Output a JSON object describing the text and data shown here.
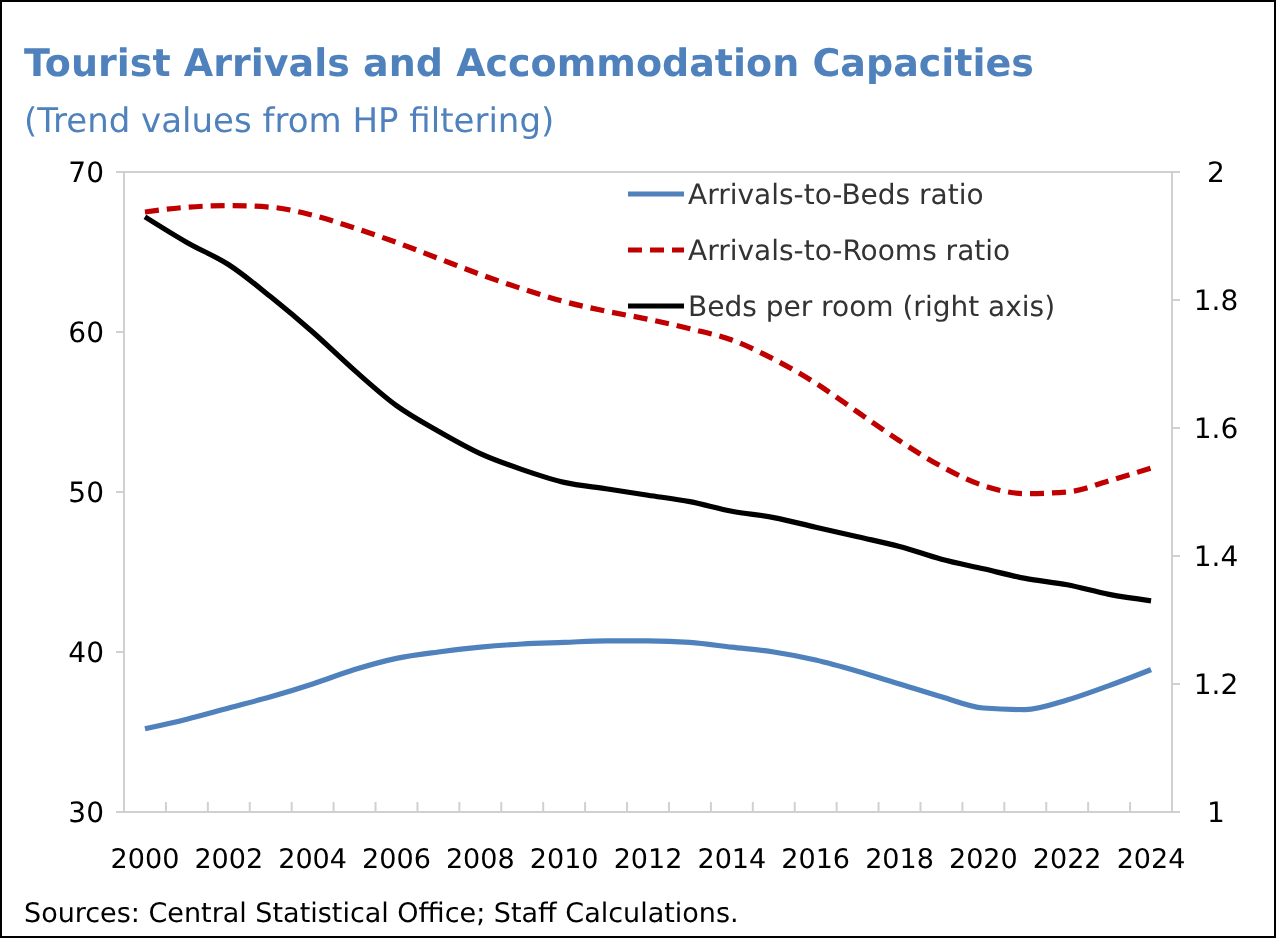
{
  "chart_data": {
    "type": "line",
    "title": "Tourist Arrivals and Accommodation Capacities",
    "subtitle": "(Trend values from HP filtering)",
    "categories": [
      "2000",
      null,
      "2002",
      null,
      "2004",
      null,
      "2006",
      null,
      "2008",
      null,
      "2010",
      null,
      "2012",
      null,
      "2014",
      null,
      "2016",
      null,
      "2018",
      null,
      "2020",
      null,
      "2022",
      null,
      "2024"
    ],
    "series": [
      {
        "name": "Arrivals-to-Beds ratio",
        "color": "#4f81bd",
        "line_style": "solid",
        "values": [
          35.2,
          35.8,
          36.5,
          37.2,
          38.0,
          38.9,
          39.6,
          40.0,
          40.3,
          40.5,
          40.6,
          40.7,
          40.7,
          40.6,
          40.3,
          40.0,
          39.5,
          38.8,
          38.0,
          37.2,
          36.5,
          36.4,
          37.0,
          37.9,
          38.9
        ]
      },
      {
        "name": "Arrivals-to-Rooms ratio",
        "color": "#c00000",
        "line_style": "dashed",
        "values": [
          67.5,
          67.8,
          67.9,
          67.8,
          67.3,
          66.5,
          65.6,
          64.6,
          63.6,
          62.7,
          61.9,
          61.3,
          60.8,
          60.2,
          59.5,
          58.3,
          56.8,
          55.0,
          53.2,
          51.6,
          50.4,
          49.9,
          50.0,
          50.7,
          51.5
        ]
      },
      {
        "name": "Beds per room (right axis)",
        "color": "#000000",
        "line_style": "solid",
        "axis": "y2",
        "values": [
          1.93,
          1.89,
          1.855,
          1.805,
          1.75,
          1.69,
          1.635,
          1.595,
          1.56,
          1.535,
          1.515,
          1.505,
          1.495,
          1.485,
          1.47,
          1.46,
          1.445,
          1.43,
          1.415,
          1.395,
          1.38,
          1.365,
          1.355,
          1.34,
          1.33
        ]
      }
    ],
    "ylim": [
      30,
      70
    ],
    "yticks": [
      30,
      40,
      50,
      60,
      70
    ],
    "y2lim": [
      1,
      2
    ],
    "y2ticks": [
      1,
      1.2,
      1.4,
      1.6,
      1.8,
      2
    ],
    "grid": false,
    "legend": "top right",
    "annotations": [
      "Sources: Central Statistical Office; Staff Calculations."
    ]
  }
}
